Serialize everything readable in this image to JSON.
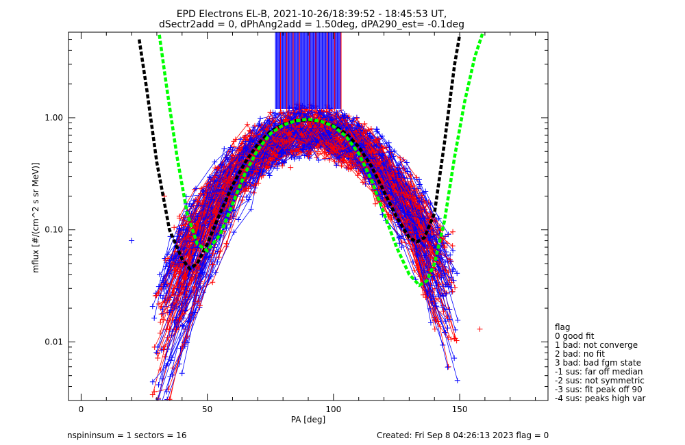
{
  "chart_data": {
    "type": "line",
    "title": "EPD Electrons EL-B, 2021-10-26/18:39:52 - 18:45:53 UT,",
    "subtitle": "dSectr2add = 0, dPhAng2add = 1.50deg, dPA290_est=  -0.1deg",
    "xlabel": "PA [deg]",
    "ylabel": "mflux [#/(cm^2 s sr MeV)]",
    "xlim": [
      -5,
      185
    ],
    "ylim": [
      0.003,
      5.8
    ],
    "yscale": "log",
    "xticks": [
      0,
      50,
      100,
      150
    ],
    "xtick_labels": [
      "0",
      "50",
      "100",
      "150"
    ],
    "yticks": [
      0.01,
      0.1,
      1.0
    ],
    "ytick_labels": [
      "0.01",
      "0.10",
      "1.00"
    ],
    "colors": {
      "black_fit": "#000000",
      "green_fit": "#00ff00",
      "blue": "#0000ff",
      "red": "#ff0000"
    },
    "series": [
      {
        "color": "black",
        "style": "dashed",
        "x": [
          23,
          26,
          30,
          35,
          40,
          43,
          46,
          50,
          55,
          60,
          65,
          70,
          75,
          80,
          85,
          90,
          95,
          100,
          105,
          110,
          115,
          120,
          125,
          130,
          133,
          136,
          140,
          144,
          148,
          150
        ],
        "y": [
          5.0,
          1.8,
          0.4,
          0.1,
          0.055,
          0.045,
          0.05,
          0.075,
          0.14,
          0.25,
          0.4,
          0.58,
          0.75,
          0.87,
          0.94,
          0.96,
          0.93,
          0.85,
          0.72,
          0.55,
          0.37,
          0.22,
          0.13,
          0.085,
          0.078,
          0.085,
          0.14,
          0.6,
          3.0,
          5.5
        ]
      },
      {
        "color": "green",
        "style": "dashed",
        "x": [
          31,
          34,
          38,
          42,
          46,
          50,
          55,
          60,
          65,
          70,
          75,
          80,
          85,
          90,
          95,
          100,
          105,
          110,
          115,
          120,
          125,
          130,
          134,
          137,
          140,
          144,
          148,
          152,
          156,
          159
        ],
        "y": [
          5.5,
          1.8,
          0.45,
          0.14,
          0.075,
          0.065,
          0.09,
          0.17,
          0.32,
          0.52,
          0.72,
          0.86,
          0.94,
          0.97,
          0.93,
          0.84,
          0.68,
          0.48,
          0.28,
          0.14,
          0.07,
          0.04,
          0.032,
          0.035,
          0.05,
          0.12,
          0.45,
          1.4,
          3.5,
          5.6
        ]
      }
    ],
    "scatter_envelope": {
      "center": 91,
      "peak_flux": 0.85,
      "pa_range": [
        20,
        160
      ],
      "min_flux": 0.003,
      "notable_points": [
        {
          "x": 20,
          "y": 0.08,
          "color": "blue"
        },
        {
          "x": 33,
          "y": 0.2,
          "color": "red"
        },
        {
          "x": 43,
          "y": 0.17,
          "color": "blue"
        },
        {
          "x": 134,
          "y": 0.18,
          "color": "blue"
        },
        {
          "x": 127,
          "y": 0.07,
          "color": "blue"
        },
        {
          "x": 83,
          "y": 0.36,
          "color": "red"
        },
        {
          "x": 158,
          "y": 0.013,
          "color": "red"
        }
      ]
    },
    "vertical_markers": {
      "x_min": 77,
      "x_max": 103,
      "y_from": 1.2,
      "y_to": 5.8,
      "red_x": [
        79,
        81.5,
        84,
        86.5,
        90.5,
        93,
        97.5,
        100.5,
        103
      ]
    },
    "legend": {
      "placement": "right",
      "title": "flag",
      "items": [
        " 0 good fit",
        " 1 bad: not converge",
        " 2 bad: no fit",
        " 3 bad: bad fgm state",
        "-1 sus: far off median",
        "-2 sus: not symmetric",
        "-3 sus: fit peak off 90",
        "-4 sus: peaks high var"
      ]
    },
    "footer": {
      "left": "nspininsum =  1  sectors = 16",
      "right": "Created: Fri Sep  8 04:26:13 2023   flag = 0"
    }
  }
}
